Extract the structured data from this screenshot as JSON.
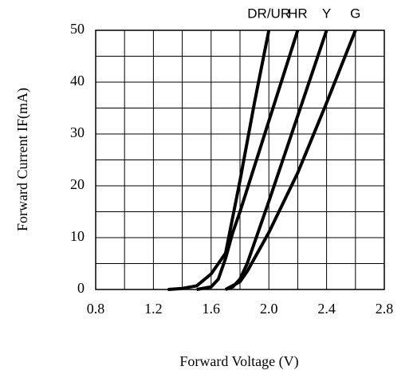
{
  "chart_data": {
    "type": "line",
    "xlabel": "Forward Voltage (V)",
    "ylabel": "Forward Current IF(mA)",
    "xlim": [
      0.8,
      2.8
    ],
    "xticks": [
      0.8,
      1.2,
      1.6,
      {
        "value": 2,
        "label": "2.0"
      },
      2.4,
      2.8
    ],
    "xminor": [
      1.0,
      1.4,
      1.8,
      2.2,
      2.6
    ],
    "ylim": [
      0,
      50
    ],
    "yticks": [
      0,
      10,
      20,
      30,
      40,
      50
    ],
    "yminor": [
      5,
      15,
      25,
      35,
      45
    ],
    "grid": true,
    "series": [
      {
        "name": "DR/UR",
        "color": "#000000",
        "x": [
          1.3,
          1.4,
          1.5,
          1.6,
          1.7,
          1.8,
          1.9,
          2.0
        ],
        "values": [
          0,
          0.2,
          0.7,
          3,
          7,
          21,
          36,
          50
        ]
      },
      {
        "name": "HR",
        "color": "#000000",
        "x": [
          1.5,
          1.6,
          1.65,
          1.7,
          1.75,
          1.8,
          2.0,
          2.2
        ],
        "values": [
          0,
          0.5,
          2,
          6,
          11,
          15,
          32.5,
          50
        ]
      },
      {
        "name": "Y",
        "color": "#000000",
        "x": [
          1.7,
          1.75,
          1.8,
          1.85,
          1.9,
          2.0,
          2.2,
          2.4
        ],
        "values": [
          0,
          0.5,
          2,
          5,
          9,
          17,
          33.5,
          50
        ]
      },
      {
        "name": "G",
        "color": "#000000",
        "x": [
          1.7,
          1.8,
          1.85,
          1.9,
          2.0,
          2.2,
          2.4,
          2.6
        ],
        "values": [
          0,
          1.5,
          3.5,
          6,
          11,
          22.5,
          36,
          50
        ]
      }
    ]
  }
}
